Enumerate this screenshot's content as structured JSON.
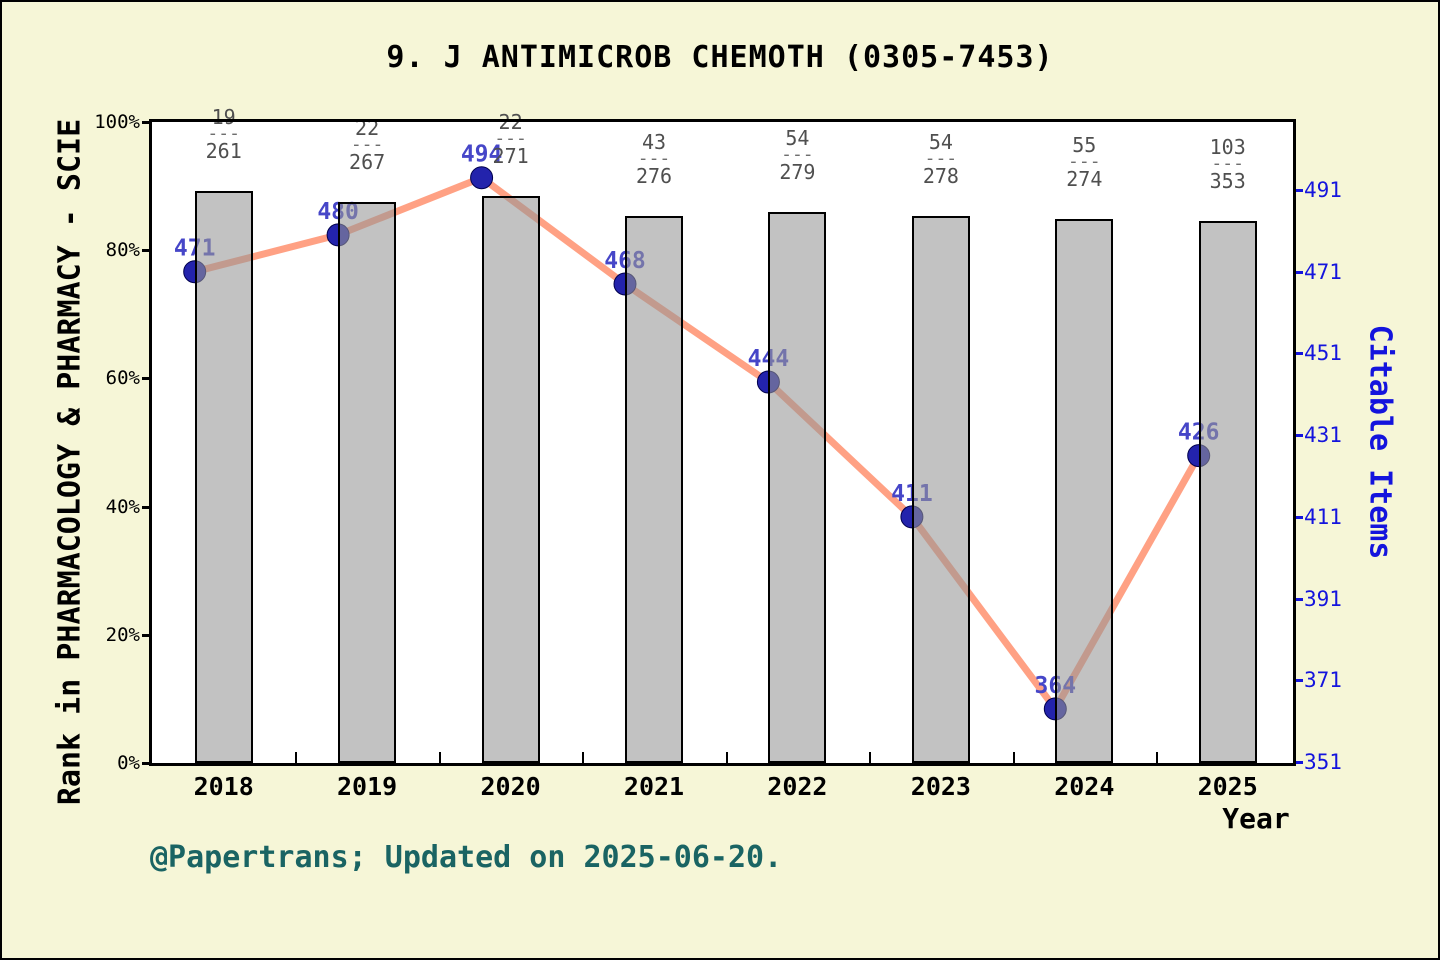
{
  "title": "9. J ANTIMICROB CHEMOTH (0305-7453)",
  "footer": "@Papertrans; Updated on 2025-06-20.",
  "axes": {
    "left": {
      "title": "Rank in PHARMACOLOGY & PHARMACY - SCIE",
      "tick_labels": [
        "0%",
        "20%",
        "40%",
        "60%",
        "80%",
        "100%"
      ],
      "tick_pcts": [
        0,
        20,
        40,
        60,
        80,
        100
      ]
    },
    "right": {
      "title": "Citable Items",
      "tick_values": [
        351,
        371,
        391,
        411,
        431,
        451,
        471,
        491
      ]
    },
    "x": {
      "title": "Year",
      "tick_labels": [
        "2018",
        "2019",
        "2020",
        "2021",
        "2022",
        "2023",
        "2024",
        "2025"
      ]
    }
  },
  "chart_data": {
    "type": "bar+line",
    "title": "9. J ANTIMICROB CHEMOTH (0305-7453)",
    "categories": [
      "2018",
      "2019",
      "2020",
      "2021",
      "2022",
      "2023",
      "2024",
      "2025"
    ],
    "series": [
      {
        "name": "Rank in PHARMACOLOGY & PHARMACY - SCIE",
        "type": "bar",
        "fractions": [
          {
            "numerator": "19",
            "denominator": "261"
          },
          {
            "numerator": "22",
            "denominator": "267"
          },
          {
            "numerator": "22",
            "denominator": "271"
          },
          {
            "numerator": "43",
            "denominator": "276"
          },
          {
            "numerator": "54",
            "denominator": "279"
          },
          {
            "numerator": "54",
            "denominator": "278"
          },
          {
            "numerator": "55",
            "denominator": "274"
          },
          {
            "numerator": "103",
            "denominator": "353"
          }
        ],
        "bar_top_pct": [
          89.3,
          87.6,
          88.5,
          85.4,
          86.0,
          85.3,
          84.8,
          84.5
        ]
      },
      {
        "name": "Citable Items",
        "type": "line",
        "values": [
          471,
          480,
          494,
          468,
          444,
          411,
          364,
          426
        ],
        "point_labels": [
          "471",
          "480",
          "494",
          "468",
          "444",
          "411",
          "364",
          "426"
        ]
      }
    ],
    "left_ylim_pct": [
      0,
      100
    ],
    "right_axis_scale": {
      "value_at_bottom": 351,
      "value_at_top_tick": 491
    },
    "grid": false,
    "legend": "none"
  },
  "colors": {
    "background": "#f6f6d7",
    "plot_background": "#ffffff",
    "frame": "#000000",
    "bar_fill": "rgba(150,150,150,0.58)",
    "bar_border": "#000000",
    "line": "#ffa184",
    "marker": "#2323ac",
    "value_label": "#4646c8",
    "right_axis_blue": "#1414dd",
    "fraction_label": "#4f4f4f",
    "footer_teal": "#1a6463"
  }
}
